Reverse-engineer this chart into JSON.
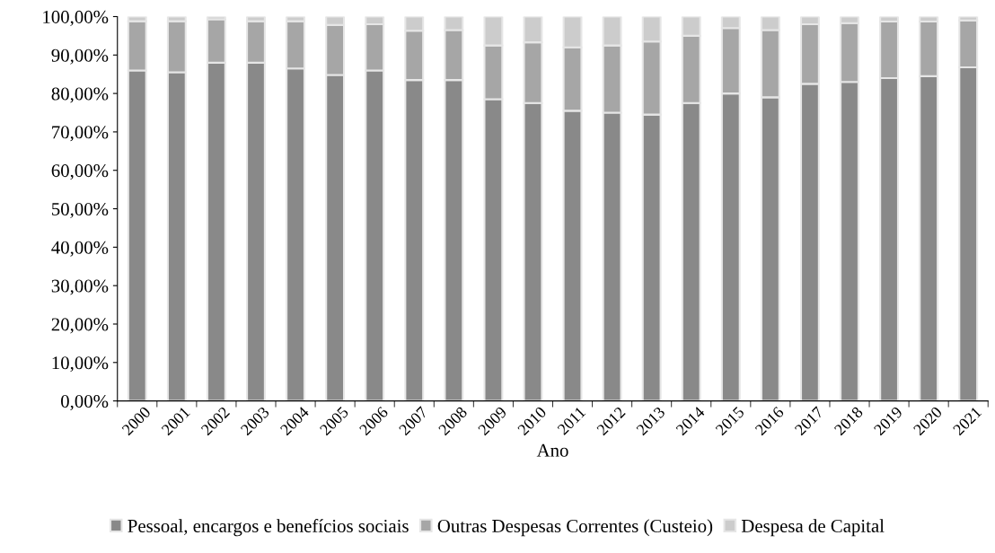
{
  "chart_data": {
    "type": "bar",
    "stacked": true,
    "xlabel": "Ano",
    "categories": [
      "2000",
      "2001",
      "2002",
      "2003",
      "2004",
      "2005",
      "2006",
      "2007",
      "2008",
      "2009",
      "2010",
      "2011",
      "2012",
      "2013",
      "2014",
      "2015",
      "2016",
      "2017",
      "2018",
      "2019",
      "2020",
      "2021"
    ],
    "series": [
      {
        "name": "Pessoal, encargos e benefícios sociais",
        "color": "#898989",
        "values": [
          86,
          85.5,
          88,
          88,
          86.5,
          84.8,
          86,
          83.5,
          83.5,
          78.5,
          77.5,
          75.5,
          75,
          74.5,
          77.5,
          80,
          79,
          82.5,
          83,
          84,
          84.5,
          86.8
        ]
      },
      {
        "name": "Outras Despesas Correntes (Custeio)",
        "color": "#a6a6a6",
        "values": [
          12.8,
          13.3,
          11.3,
          10.8,
          12.3,
          13,
          12,
          12.8,
          13,
          14,
          15.8,
          16.5,
          17.5,
          19,
          17.5,
          17,
          17.5,
          15.5,
          15.3,
          14.7,
          14.2,
          12.2
        ]
      },
      {
        "name": "Despesa de Capital",
        "color": "#cccccc",
        "values": [
          1.2,
          1.2,
          0.7,
          1.2,
          1.2,
          2.2,
          2,
          3.7,
          3.5,
          7.5,
          6.7,
          8,
          7.5,
          6.5,
          5,
          3,
          3.5,
          2,
          1.7,
          1.3,
          1.3,
          1
        ]
      }
    ],
    "ylim": [
      0,
      100
    ],
    "yticks": [
      {
        "value": 0,
        "label": "0,00%"
      },
      {
        "value": 10,
        "label": "10,00%"
      },
      {
        "value": 20,
        "label": "20,00%"
      },
      {
        "value": 30,
        "label": "30,00%"
      },
      {
        "value": 40,
        "label": "40,00%"
      },
      {
        "value": 50,
        "label": "50,00%"
      },
      {
        "value": 60,
        "label": "60,00%"
      },
      {
        "value": 70,
        "label": "70,00%"
      },
      {
        "value": 80,
        "label": "80,00%"
      },
      {
        "value": 90,
        "label": "90,00%"
      },
      {
        "value": 100,
        "label": "100,00%"
      }
    ],
    "grid": false,
    "legend": "bottom"
  }
}
